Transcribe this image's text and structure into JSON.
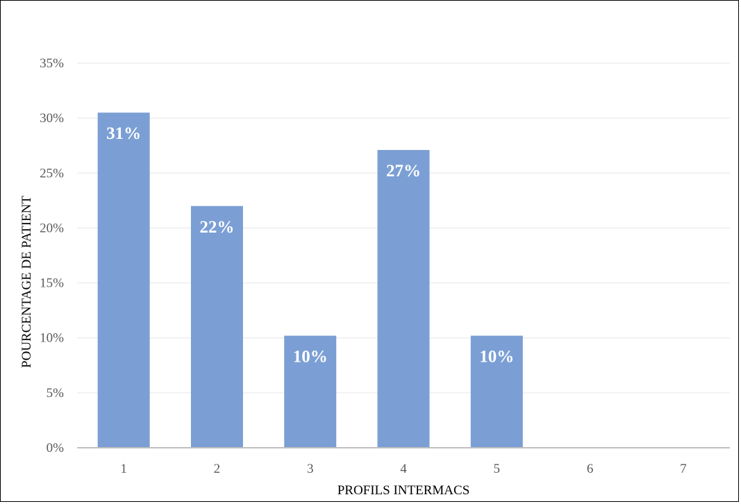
{
  "chart_data": {
    "type": "bar",
    "categories": [
      "1",
      "2",
      "3",
      "4",
      "5",
      "6",
      "7"
    ],
    "values": [
      30.5,
      22.0,
      10.2,
      27.1,
      10.2,
      0,
      0
    ],
    "data_labels": [
      "31%",
      "22%",
      "10%",
      "27%",
      "10%",
      null,
      null
    ],
    "title": "",
    "xlabel": "PROFILS INTERMACS",
    "ylabel": "POURCENTAGE DE PATIENT",
    "ylim": [
      0,
      35
    ],
    "y_ticks": [
      0,
      5,
      10,
      15,
      20,
      25,
      30,
      35
    ],
    "y_tick_labels": [
      "0%",
      "5%",
      "10%",
      "15%",
      "20%",
      "25%",
      "30%",
      "35%"
    ],
    "grid": true,
    "legend": "none",
    "colors": {
      "bar": "#7B9FD4",
      "grid": "#E6E6E6",
      "axis": "#BFBFBF",
      "tick_text": "#595959"
    }
  }
}
